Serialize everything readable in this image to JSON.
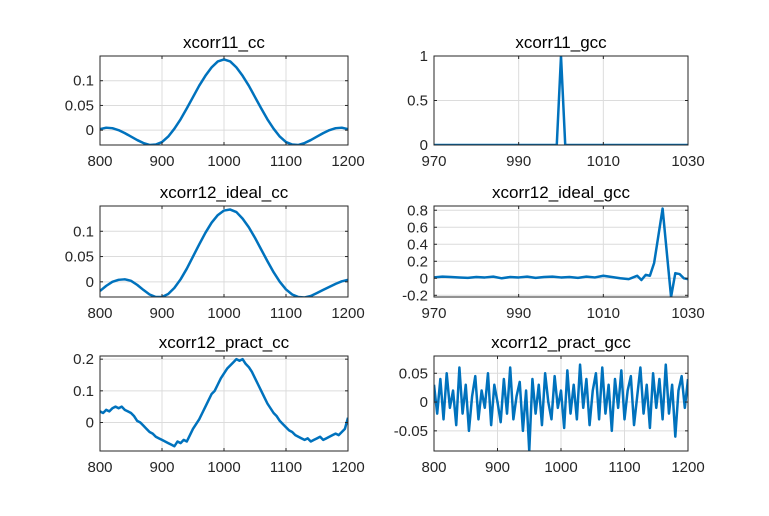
{
  "colors": {
    "series": "#0072BD",
    "axes": "#262626",
    "grid": "#dcdcdc",
    "background": "#ffffff"
  },
  "chart_data": [
    {
      "type": "line",
      "title": "xcorr11_cc",
      "xlim": [
        800,
        1200
      ],
      "ylim": [
        -0.03,
        0.15
      ],
      "xticks": [
        800,
        900,
        1000,
        1100,
        1200
      ],
      "xtick_labels": [
        "800",
        "900",
        "1000",
        "1100",
        "1200"
      ],
      "yticks": [
        0,
        0.05,
        0.1
      ],
      "ytick_labels": [
        "0",
        "0.05",
        "0.1"
      ],
      "grid": true,
      "series": [
        {
          "x": [
            800,
            810,
            820,
            830,
            840,
            850,
            860,
            870,
            880,
            890,
            900,
            910,
            920,
            930,
            940,
            950,
            960,
            970,
            980,
            990,
            1000,
            1010,
            1020,
            1030,
            1040,
            1050,
            1060,
            1070,
            1080,
            1090,
            1100,
            1110,
            1120,
            1130,
            1140,
            1150,
            1160,
            1170,
            1180,
            1190,
            1200
          ],
          "y": [
            0.002,
            0.005,
            0.004,
            0.0,
            -0.006,
            -0.013,
            -0.02,
            -0.026,
            -0.03,
            -0.029,
            -0.024,
            -0.013,
            0.003,
            0.022,
            0.044,
            0.067,
            0.09,
            0.11,
            0.127,
            0.139,
            0.143,
            0.139,
            0.127,
            0.11,
            0.09,
            0.067,
            0.044,
            0.022,
            0.003,
            -0.013,
            -0.024,
            -0.029,
            -0.03,
            -0.026,
            -0.02,
            -0.013,
            -0.006,
            0.0,
            0.004,
            0.005,
            0.002
          ]
        }
      ]
    },
    {
      "type": "line",
      "title": "xcorr11_gcc",
      "xlim": [
        970,
        1030
      ],
      "ylim": [
        0,
        1
      ],
      "xticks": [
        970,
        990,
        1010,
        1030
      ],
      "xtick_labels": [
        "970",
        "990",
        "1010",
        "1030"
      ],
      "yticks": [
        0,
        0.5,
        1
      ],
      "ytick_labels": [
        "0",
        "0.5",
        "1"
      ],
      "grid": true,
      "series": [
        {
          "x": [
            970,
            999,
            1000,
            1001,
            1030
          ],
          "y": [
            0,
            0,
            1,
            0,
            0
          ]
        }
      ]
    },
    {
      "type": "line",
      "title": "xcorr12_ideal_cc",
      "xlim": [
        800,
        1200
      ],
      "ylim": [
        -0.03,
        0.15
      ],
      "xticks": [
        800,
        900,
        1000,
        1100,
        1200
      ],
      "xtick_labels": [
        "800",
        "900",
        "1000",
        "1100",
        "1200"
      ],
      "yticks": [
        0,
        0.05,
        0.1
      ],
      "ytick_labels": [
        "0",
        "0.05",
        "0.1"
      ],
      "grid": true,
      "series": [
        {
          "x": [
            800,
            810,
            820,
            830,
            840,
            850,
            860,
            870,
            880,
            890,
            900,
            910,
            920,
            930,
            940,
            950,
            960,
            970,
            980,
            990,
            1000,
            1010,
            1020,
            1030,
            1040,
            1050,
            1060,
            1070,
            1080,
            1090,
            1100,
            1110,
            1120,
            1130,
            1140,
            1150,
            1160,
            1170,
            1180,
            1190,
            1200
          ],
          "y": [
            -0.018,
            -0.008,
            0.0,
            0.004,
            0.005,
            0.002,
            -0.006,
            -0.016,
            -0.025,
            -0.03,
            -0.03,
            -0.024,
            -0.012,
            0.005,
            0.026,
            0.05,
            0.074,
            0.097,
            0.117,
            0.132,
            0.141,
            0.143,
            0.138,
            0.125,
            0.108,
            0.087,
            0.064,
            0.041,
            0.019,
            0.0,
            -0.015,
            -0.025,
            -0.03,
            -0.031,
            -0.028,
            -0.022,
            -0.016,
            -0.01,
            -0.004,
            0.001,
            0.004
          ]
        }
      ]
    },
    {
      "type": "line",
      "title": "xcorr12_ideal_gcc",
      "xlim": [
        970,
        1030
      ],
      "ylim": [
        -0.22,
        0.85
      ],
      "xticks": [
        970,
        990,
        1010,
        1030
      ],
      "xtick_labels": [
        "970",
        "990",
        "1010",
        "1030"
      ],
      "yticks": [
        -0.2,
        0,
        0.2,
        0.4,
        0.6,
        0.8
      ],
      "ytick_labels": [
        "-0.2",
        "0",
        "0.2",
        "0.4",
        "0.6",
        "0.8"
      ],
      "grid": true,
      "series": [
        {
          "x": [
            970,
            972,
            974,
            976,
            978,
            980,
            982,
            984,
            986,
            988,
            990,
            992,
            994,
            996,
            998,
            1000,
            1002,
            1004,
            1006,
            1008,
            1010,
            1012,
            1014,
            1016,
            1018,
            1019,
            1020,
            1021,
            1022,
            1023,
            1024,
            1025,
            1026,
            1027,
            1028,
            1029,
            1030
          ],
          "y": [
            0.01,
            0.02,
            0.015,
            0.01,
            0.005,
            0.015,
            0.01,
            0.02,
            0.0,
            0.015,
            0.01,
            0.02,
            0.005,
            0.015,
            0.02,
            0.01,
            0.015,
            0.005,
            0.02,
            0.01,
            0.03,
            0.015,
            0.0,
            -0.01,
            0.03,
            -0.02,
            0.04,
            0.03,
            0.18,
            0.5,
            0.82,
            0.3,
            -0.22,
            0.06,
            0.05,
            0.0,
            -0.01
          ]
        }
      ]
    },
    {
      "type": "line",
      "title": "xcorr12_pract_cc",
      "xlim": [
        800,
        1200
      ],
      "ylim": [
        -0.09,
        0.21
      ],
      "xticks": [
        800,
        900,
        1000,
        1100,
        1200
      ],
      "xtick_labels": [
        "800",
        "900",
        "1000",
        "1100",
        "1200"
      ],
      "yticks": [
        0,
        0.1,
        0.2
      ],
      "ytick_labels": [
        "0",
        "0.1",
        "0.2"
      ],
      "grid": true,
      "series": [
        {
          "x": [
            800,
            805,
            810,
            815,
            820,
            825,
            830,
            835,
            840,
            845,
            850,
            855,
            860,
            865,
            870,
            875,
            880,
            885,
            890,
            895,
            900,
            905,
            910,
            915,
            920,
            925,
            930,
            935,
            940,
            945,
            950,
            955,
            960,
            965,
            970,
            975,
            980,
            985,
            990,
            995,
            1000,
            1005,
            1010,
            1015,
            1020,
            1025,
            1030,
            1035,
            1040,
            1045,
            1050,
            1055,
            1060,
            1065,
            1070,
            1075,
            1080,
            1085,
            1090,
            1095,
            1100,
            1105,
            1110,
            1115,
            1120,
            1125,
            1130,
            1135,
            1140,
            1145,
            1150,
            1155,
            1160,
            1165,
            1170,
            1175,
            1180,
            1185,
            1190,
            1195,
            1200
          ],
          "y": [
            0.035,
            0.03,
            0.04,
            0.035,
            0.045,
            0.05,
            0.045,
            0.05,
            0.04,
            0.035,
            0.03,
            0.02,
            0.005,
            0.0,
            -0.01,
            -0.02,
            -0.03,
            -0.035,
            -0.045,
            -0.05,
            -0.055,
            -0.06,
            -0.065,
            -0.07,
            -0.075,
            -0.06,
            -0.065,
            -0.055,
            -0.06,
            -0.04,
            -0.02,
            -0.005,
            0.01,
            0.03,
            0.05,
            0.07,
            0.09,
            0.1,
            0.12,
            0.14,
            0.155,
            0.17,
            0.18,
            0.19,
            0.2,
            0.195,
            0.2,
            0.185,
            0.175,
            0.16,
            0.14,
            0.12,
            0.1,
            0.08,
            0.06,
            0.045,
            0.03,
            0.02,
            0.005,
            -0.005,
            -0.015,
            -0.025,
            -0.03,
            -0.04,
            -0.045,
            -0.05,
            -0.055,
            -0.05,
            -0.06,
            -0.055,
            -0.05,
            -0.045,
            -0.055,
            -0.05,
            -0.045,
            -0.04,
            -0.035,
            -0.04,
            -0.03,
            -0.02,
            0.015
          ]
        }
      ]
    },
    {
      "type": "line",
      "title": "xcorr12_pract_gcc",
      "xlim": [
        800,
        1200
      ],
      "ylim": [
        -0.085,
        0.08
      ],
      "xticks": [
        800,
        900,
        1000,
        1100,
        1200
      ],
      "xtick_labels": [
        "800",
        "900",
        "1000",
        "1100",
        "1200"
      ],
      "yticks": [
        -0.05,
        0,
        0.05
      ],
      "ytick_labels": [
        "-0.05",
        "0",
        "0.05"
      ],
      "grid": true,
      "series": [
        {
          "x": [
            800,
            805,
            810,
            815,
            820,
            825,
            830,
            835,
            840,
            845,
            850,
            855,
            860,
            865,
            870,
            875,
            880,
            885,
            890,
            895,
            900,
            905,
            910,
            915,
            920,
            925,
            930,
            935,
            940,
            945,
            950,
            955,
            960,
            965,
            970,
            975,
            980,
            985,
            990,
            995,
            1000,
            1005,
            1010,
            1015,
            1020,
            1025,
            1030,
            1035,
            1040,
            1045,
            1050,
            1055,
            1060,
            1065,
            1070,
            1075,
            1080,
            1085,
            1090,
            1095,
            1100,
            1105,
            1110,
            1115,
            1120,
            1125,
            1130,
            1135,
            1140,
            1145,
            1150,
            1155,
            1160,
            1165,
            1170,
            1175,
            1180,
            1185,
            1190,
            1195,
            1200
          ],
          "y": [
            0.03,
            -0.02,
            0.04,
            -0.03,
            0.05,
            -0.01,
            0.02,
            -0.04,
            0.06,
            -0.02,
            0.03,
            -0.05,
            0.01,
            0.045,
            -0.03,
            0.02,
            -0.01,
            0.05,
            -0.04,
            0.03,
            0.0,
            -0.035,
            0.04,
            -0.02,
            0.06,
            -0.03,
            0.01,
            0.035,
            -0.05,
            0.02,
            -0.085,
            0.04,
            -0.02,
            0.03,
            -0.04,
            0.05,
            0.0,
            -0.03,
            0.045,
            -0.01,
            0.02,
            -0.045,
            0.055,
            -0.02,
            0.03,
            -0.03,
            0.065,
            -0.01,
            0.04,
            -0.04,
            0.02,
            0.05,
            -0.03,
            0.06,
            -0.02,
            0.03,
            -0.05,
            0.04,
            -0.01,
            0.055,
            -0.03,
            0.02,
            0.045,
            -0.04,
            0.01,
            0.06,
            -0.02,
            0.03,
            -0.045,
            0.05,
            -0.01,
            0.04,
            -0.03,
            0.065,
            -0.02,
            0.03,
            -0.06,
            0.02,
            0.045,
            -0.01,
            0.04
          ]
        }
      ]
    }
  ]
}
